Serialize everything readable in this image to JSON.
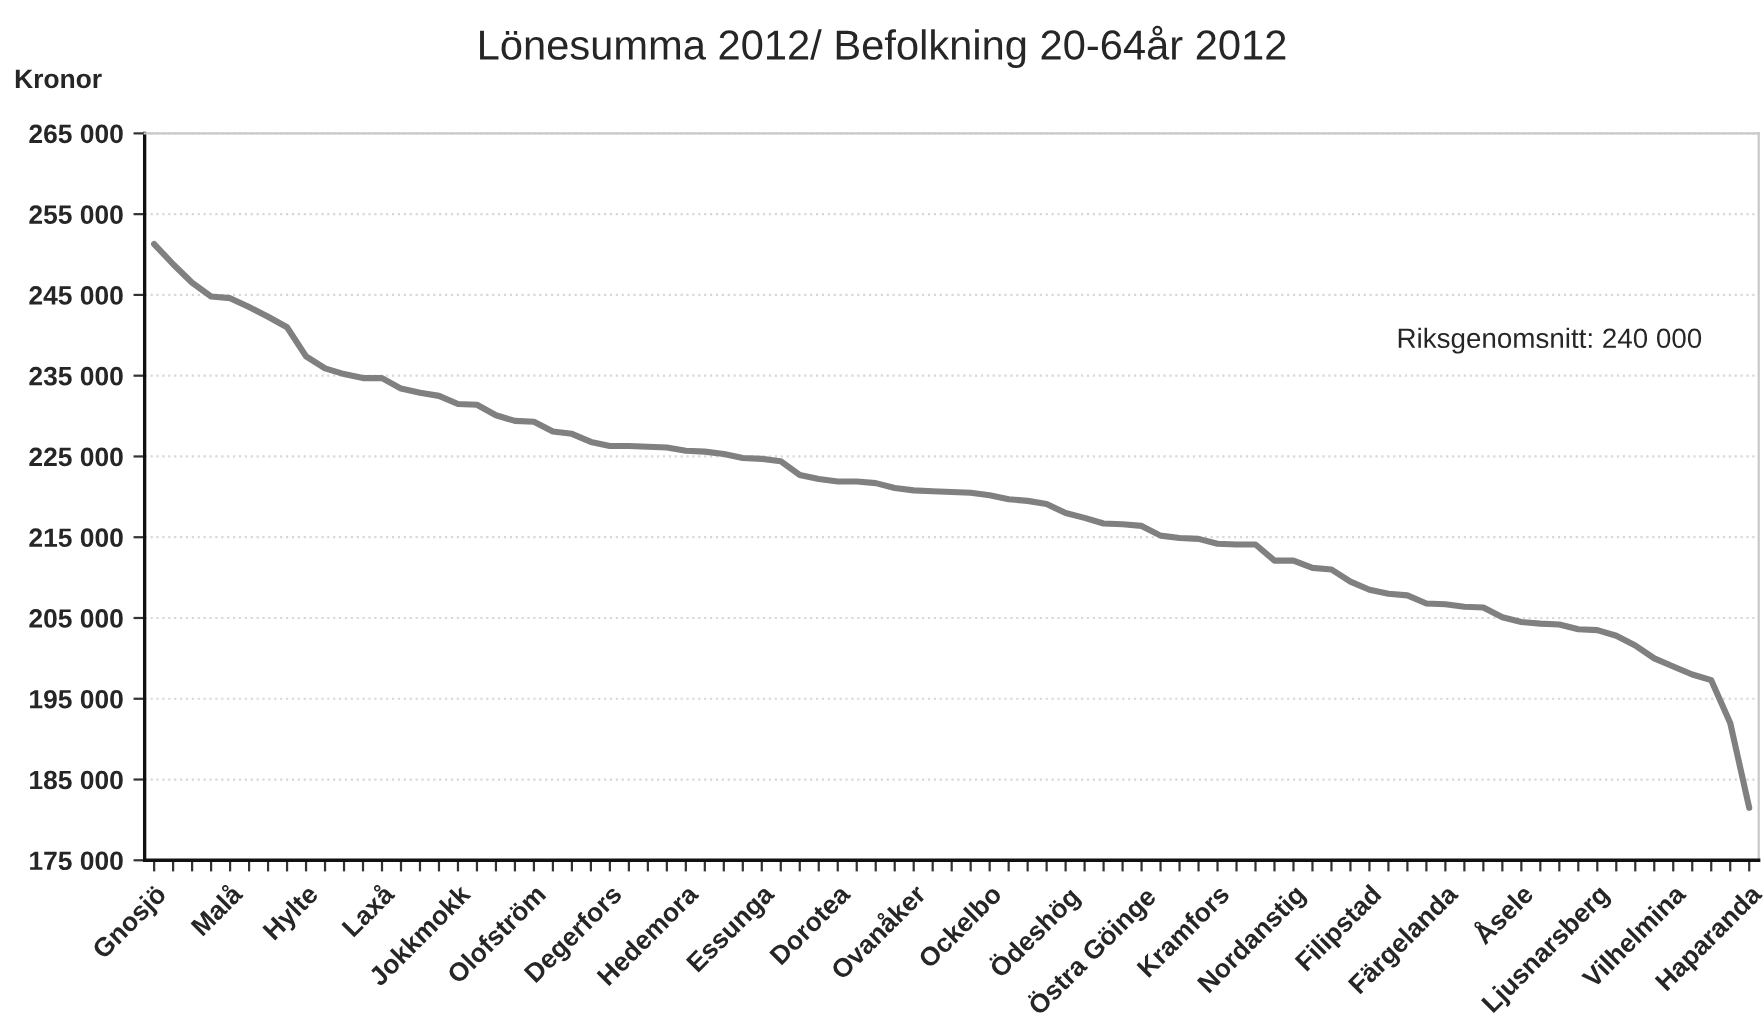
{
  "chart_data": {
    "type": "line",
    "title": "Lönesumma 2012/ Befolkning 20-64år 2012",
    "ylabel": "Kronor",
    "categories": [
      "Gnosjö",
      null,
      null,
      null,
      "Malå",
      null,
      null,
      null,
      "Hylte",
      null,
      null,
      null,
      "Laxå",
      null,
      null,
      null,
      "Jokkmokk",
      null,
      null,
      null,
      "Olofström",
      null,
      null,
      null,
      "Degerfors",
      null,
      null,
      null,
      "Hedemora",
      null,
      null,
      null,
      "Essunga",
      null,
      null,
      null,
      "Dorotea",
      null,
      null,
      null,
      "Ovanåker",
      null,
      null,
      null,
      "Ockelbo",
      null,
      null,
      null,
      "Ödeshög",
      null,
      null,
      null,
      "Östra Göinge",
      null,
      null,
      null,
      "Kramfors",
      null,
      null,
      null,
      "Nordanstig",
      null,
      null,
      null,
      "Filipstad",
      null,
      null,
      null,
      "Färgelanda",
      null,
      null,
      null,
      "Åsele",
      null,
      null,
      null,
      "Ljusnarsberg",
      null,
      null,
      null,
      "Vilhelmina",
      null,
      null,
      null,
      "Haparanda"
    ],
    "series": [
      {
        "color": "#808080",
        "values": [
          251300,
          248800,
          246500,
          244800,
          244600,
          243500,
          242300,
          241000,
          237400,
          235900,
          235200,
          234700,
          234700,
          233400,
          232900,
          232500,
          231500,
          231400,
          230100,
          229400,
          229300,
          228100,
          227800,
          226800,
          226300,
          226300,
          226200,
          226100,
          225700,
          225600,
          225300,
          224800,
          224700,
          224400,
          222700,
          222200,
          221900,
          221900,
          221700,
          221100,
          220800,
          220700,
          220600,
          220500,
          220200,
          219700,
          219500,
          219100,
          218000,
          217400,
          216700,
          216600,
          216400,
          215200,
          214900,
          214800,
          214200,
          214100,
          214100,
          212100,
          212100,
          211200,
          211000,
          209500,
          208500,
          208000,
          207800,
          206800,
          206700,
          206400,
          206300,
          205100,
          204500,
          204300,
          204200,
          203600,
          203500,
          202800,
          201600,
          200000,
          199000,
          198000,
          197300,
          192000,
          181500
        ]
      }
    ],
    "ylim": [
      175000,
      265000
    ],
    "yticks": [
      {
        "value": 175000,
        "label": "175 000"
      },
      {
        "value": 185000,
        "label": "185 000"
      },
      {
        "value": 195000,
        "label": "195 000"
      },
      {
        "value": 205000,
        "label": "205 000"
      },
      {
        "value": 215000,
        "label": "215 000"
      },
      {
        "value": 225000,
        "label": "225 000"
      },
      {
        "value": 235000,
        "label": "235 000"
      },
      {
        "value": 245000,
        "label": "245 000"
      },
      {
        "value": 255000,
        "label": "255 000"
      },
      {
        "value": 265000,
        "label": "265 000"
      }
    ],
    "grid": "y",
    "legend": false,
    "marker": "none",
    "line_style": "solid",
    "annotations": [
      "Riksgenomsnitt: 240 000"
    ]
  }
}
